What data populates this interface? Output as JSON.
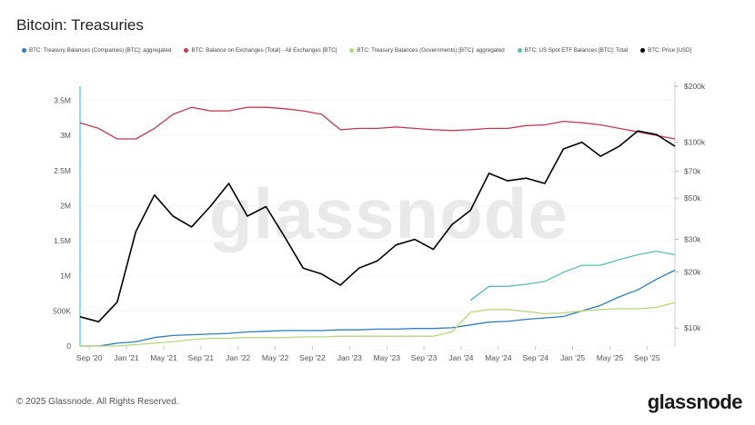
{
  "title": "Bitcoin: Treasuries",
  "footer": "© 2025 Glassnode. All Rights Reserved.",
  "brand": "glassnode",
  "watermark": "glassnode",
  "chart_data": {
    "type": "line",
    "title": "Bitcoin: Treasuries",
    "x": [
      "2020-08",
      "2020-09",
      "2020-11",
      "2021-01",
      "2021-03",
      "2021-05",
      "2021-07",
      "2021-09",
      "2021-11",
      "2022-01",
      "2022-03",
      "2022-05",
      "2022-07",
      "2022-09",
      "2022-11",
      "2023-01",
      "2023-03",
      "2023-05",
      "2023-07",
      "2023-09",
      "2023-11",
      "2024-01",
      "2024-03",
      "2024-05",
      "2024-07",
      "2024-09",
      "2024-11",
      "2025-01",
      "2025-03",
      "2025-05",
      "2025-07",
      "2025-09",
      "2025-11"
    ],
    "x_ticks": [
      "Sep '20",
      "Jan '21",
      "May '21",
      "Sep '21",
      "Jan '22",
      "May '22",
      "Sep '22",
      "Jan '23",
      "May '23",
      "Sep '23",
      "Jan '24",
      "May '24",
      "Sep '24",
      "Jan '25",
      "May '25",
      "Sep '25"
    ],
    "y_left_ticks": [
      "0",
      "500K",
      "1M",
      "1.5M",
      "2M",
      "2.5M",
      "3M",
      "3.5M"
    ],
    "y_left_range": [
      0,
      3700000
    ],
    "y_right_ticks": [
      "$10k",
      "$20k",
      "$30k",
      "$50k",
      "$70k",
      "$100k",
      "$200k"
    ],
    "y_right_range": [
      8000,
      200000
    ],
    "y_right_scale": "log",
    "legend_position": "top-left",
    "series": [
      {
        "name": "BTC: Treasury Balances (Companies) [BTC]: aggregated",
        "axis": "left",
        "color": "#2f7db8",
        "values": [
          0,
          0,
          40000,
          60000,
          120000,
          150000,
          160000,
          170000,
          180000,
          200000,
          210000,
          220000,
          220000,
          220000,
          230000,
          230000,
          240000,
          240000,
          250000,
          250000,
          260000,
          300000,
          340000,
          350000,
          380000,
          400000,
          420000,
          500000,
          580000,
          700000,
          800000,
          950000,
          1080000
        ]
      },
      {
        "name": "BTC: Balance on Exchanges (Total) - All Exchanges [BTC]",
        "axis": "left",
        "color": "#c0394f",
        "values": [
          3180000,
          3100000,
          2950000,
          2950000,
          3100000,
          3300000,
          3400000,
          3350000,
          3350000,
          3400000,
          3400000,
          3380000,
          3350000,
          3300000,
          3080000,
          3100000,
          3100000,
          3120000,
          3100000,
          3080000,
          3070000,
          3080000,
          3100000,
          3100000,
          3140000,
          3150000,
          3200000,
          3180000,
          3150000,
          3100000,
          3050000,
          3000000,
          2950000
        ]
      },
      {
        "name": "BTC: Treasury Balances (Governments) [BTC]: aggregated",
        "axis": "left",
        "color": "#b8d67a",
        "values": [
          0,
          0,
          0,
          20000,
          40000,
          60000,
          90000,
          110000,
          110000,
          120000,
          120000,
          120000,
          130000,
          130000,
          140000,
          140000,
          140000,
          140000,
          140000,
          140000,
          200000,
          480000,
          520000,
          520000,
          490000,
          460000,
          470000,
          500000,
          520000,
          530000,
          530000,
          550000,
          620000
        ]
      },
      {
        "name": "BTC: US Spot ETF Balances [BTC]: Total",
        "axis": "left",
        "color": "#5bbcb0",
        "values": [
          null,
          null,
          null,
          null,
          null,
          null,
          null,
          null,
          null,
          null,
          null,
          null,
          null,
          null,
          null,
          null,
          null,
          null,
          null,
          null,
          null,
          650000,
          850000,
          850000,
          880000,
          920000,
          1050000,
          1150000,
          1150000,
          1230000,
          1300000,
          1350000,
          1300000
        ]
      },
      {
        "name": "BTC: Price [USD]",
        "axis": "right",
        "color": "#000000",
        "values": [
          11500,
          10800,
          13800,
          33000,
          52000,
          40000,
          35000,
          45000,
          60000,
          40000,
          45000,
          31000,
          21000,
          19500,
          17000,
          21000,
          23000,
          28000,
          30000,
          26500,
          36000,
          43000,
          68000,
          62000,
          64000,
          60000,
          92000,
          100000,
          84000,
          95000,
          115000,
          110000,
          95000
        ]
      }
    ]
  }
}
